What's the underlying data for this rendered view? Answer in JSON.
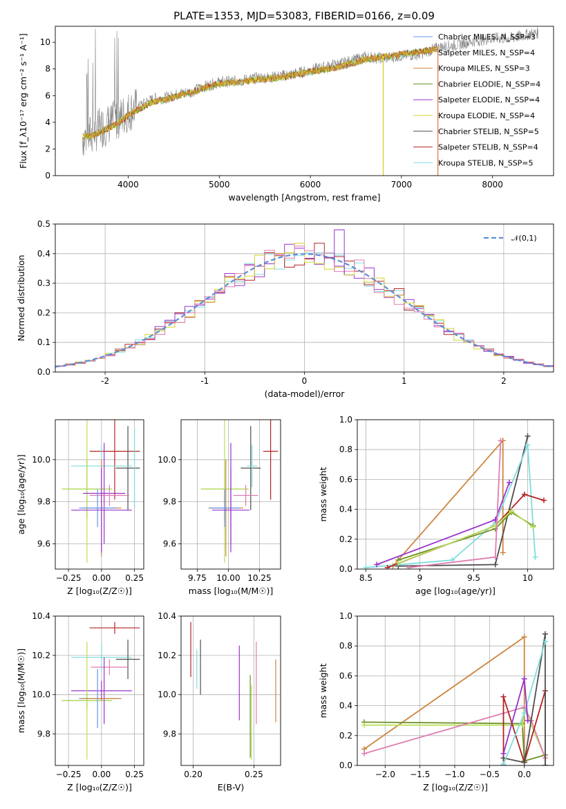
{
  "figure": {
    "title": "PLATE=1353, MJD=53083, FIBERID=0166, z=0.09"
  },
  "colors": {
    "Chabrier MILES": "#6495ed",
    "Salpeter MILES": "#cd853f",
    "Kroupa MILES": "#cd853f",
    "Chabrier ELODIE": "#6b8e23",
    "Salpeter ELODIE": "#9932cc",
    "Kroupa ELODIE": "#d2d22a",
    "Chabrier STELIB": "#4d4d4d",
    "Salpeter STELIB": "#b22222",
    "Kroupa STELIB": "#7fdcdc",
    "extra": "#e07cb0",
    "lime": "#b8e05a",
    "gray": "#808080"
  },
  "chart_data": [
    {
      "id": "spectrum",
      "type": "line",
      "title": "PLATE=1353, MJD=53083, FIBERID=0166, z=0.09",
      "xlabel": "wavelength [Angstrom, rest frame]",
      "ylabel": "Flux [f_λ10⁻¹⁷ erg cm⁻² s⁻¹ A⁻¹]",
      "xlim": [
        3200,
        8670
      ],
      "ylim": [
        0,
        11.2
      ],
      "xticks": [
        4000,
        5000,
        6000,
        7000,
        8000
      ],
      "yticks": [
        0,
        2,
        4,
        6,
        8,
        10
      ],
      "grid": false,
      "legend_position": "top-right",
      "legend": [
        "Chabrier MILES, N_SSP=3",
        "Salpeter MILES, N_SSP=4",
        "Kroupa MILES, N_SSP=3",
        "Chabrier ELODIE, N_SSP=4",
        "Salpeter ELODIE, N_SSP=4",
        "Kroupa ELODIE, N_SSP=4",
        "Chabrier STELIB, N_SSP=5",
        "Salpeter STELIB, N_SSP=4",
        "Kroupa STELIB, N_SSP=5"
      ],
      "data_series": {
        "name": "data",
        "x": [
          3500,
          3600,
          3700,
          3800,
          3900,
          4000,
          4100,
          4200,
          4300,
          4400,
          4500,
          4600,
          4700,
          4800,
          4900,
          5000,
          5200,
          5400,
          5600,
          5800,
          6000,
          6200,
          6400,
          6600,
          6800,
          7000,
          7200,
          7400,
          7600,
          7800,
          8000,
          8200,
          8400,
          8500
        ],
        "y": [
          2.8,
          3.1,
          3.6,
          3.9,
          4.3,
          4.8,
          5.1,
          5.5,
          5.8,
          5.8,
          6.0,
          6.2,
          6.3,
          6.6,
          6.8,
          7.0,
          7.1,
          7.3,
          7.4,
          7.6,
          7.9,
          8.2,
          8.5,
          8.9,
          8.8,
          9.0,
          9.1,
          9.6,
          9.8,
          10.1,
          10.3,
          10.3,
          10.6,
          10.7
        ]
      },
      "model_x": [
        3500,
        3600,
        3700,
        3800,
        3900,
        4000,
        4100,
        4200,
        4300,
        4400,
        4500,
        4600,
        4700,
        4800,
        4900,
        5000,
        5200,
        5400,
        5600,
        5800,
        6000,
        6200,
        6400,
        6600,
        6800,
        7000,
        7200,
        7400
      ],
      "model_y": [
        2.9,
        3.0,
        3.3,
        3.6,
        4.0,
        4.5,
        4.9,
        5.3,
        5.6,
        5.7,
        5.9,
        6.1,
        6.2,
        6.5,
        6.7,
        6.9,
        7.0,
        7.2,
        7.3,
        7.5,
        7.8,
        8.0,
        8.3,
        8.7,
        8.9,
        9.1,
        9.3,
        9.5
      ]
    },
    {
      "id": "residuals",
      "type": "line",
      "xlabel": "(data-model)/error",
      "ylabel": "Normed distribution",
      "xlim": [
        -2.5,
        2.5
      ],
      "ylim": [
        0,
        0.5
      ],
      "xticks": [
        -2,
        -1,
        0,
        1,
        2
      ],
      "yticks": [
        0.0,
        0.1,
        0.2,
        0.3,
        0.4,
        0.5
      ],
      "grid": true,
      "legend_position": "top-right",
      "legend": [
        "𝒩(0,1)"
      ],
      "curve": {
        "name": "𝒩(0,1)",
        "mean": 0,
        "std": 1
      },
      "bin_width": 0.1,
      "bin_start": -2.5
    },
    {
      "id": "age-vs-Z",
      "type": "scatter",
      "xlabel": "Z [log₁₀(Z/Z☉)]",
      "ylabel": "age  [log₁₀(age/yr)]",
      "xlim": [
        -0.35,
        0.32
      ],
      "ylim": [
        9.48,
        10.19
      ],
      "xticks": [
        -0.25,
        0.0,
        0.25
      ],
      "xtick_labels": [
        "−0.25",
        "0.00",
        "0.25"
      ],
      "yticks": [
        9.6,
        9.8,
        10.0
      ],
      "grid": true,
      "points": [
        {
          "x": 0.1,
          "y": 10.04,
          "xerr": 0.19,
          "yerr": 0.23,
          "color": "#b22222"
        },
        {
          "x": 0.2,
          "y": 9.96,
          "xerr": 0.09,
          "yerr": 0.2,
          "color": "#4d4d4d"
        },
        {
          "x": 0.0,
          "y": 9.97,
          "xerr": 0.23,
          "yerr": 0.1,
          "color": "#7fdcdc"
        },
        {
          "x": -0.11,
          "y": 9.86,
          "xerr": 0.19,
          "yerr": 0.14,
          "color": "#6b8e23"
        },
        {
          "x": -0.11,
          "y": 9.86,
          "xerr": 0.19,
          "yerr": 0.35,
          "color": "#b8e05a"
        },
        {
          "x": 0.02,
          "y": 9.84,
          "xerr": 0.16,
          "yerr": 0.24,
          "color": "#9932cc"
        },
        {
          "x": 0.06,
          "y": 9.83,
          "xerr": 0.15,
          "yerr": 0.05,
          "color": "#e07cb0"
        },
        {
          "x": 0.0,
          "y": 9.77,
          "xerr": 0.15,
          "yerr": 0.23,
          "color": "#cd853f"
        },
        {
          "x": -0.03,
          "y": 9.77,
          "xerr": 0.14,
          "yerr": 0.09,
          "color": "#6495ed"
        },
        {
          "x": 0.0,
          "y": 9.76,
          "xerr": 0.23,
          "yerr": 0.2,
          "color": "#9932cc"
        },
        {
          "x": 0.25,
          "y": 9.96,
          "xerr": 0.0,
          "yerr": 0.19,
          "color": "#7fdcdc"
        }
      ]
    },
    {
      "id": "age-vs-mass",
      "type": "scatter",
      "xlabel": "mass [log₁₀(M/M☉)]",
      "ylabel": "",
      "xlim": [
        9.62,
        10.42
      ],
      "ylim": [
        9.48,
        10.19
      ],
      "xticks": [
        9.75,
        10.0,
        10.25
      ],
      "xtick_labels": [
        "9.75",
        "10.00",
        "10.25"
      ],
      "yticks": [
        9.6,
        9.8,
        10.0
      ],
      "grid": true,
      "points": [
        {
          "x": 10.34,
          "y": 10.04,
          "xerr": 0.06,
          "yerr": 0.23,
          "color": "#b22222"
        },
        {
          "x": 10.18,
          "y": 9.96,
          "xerr": 0.08,
          "yerr": 0.2,
          "color": "#4d4d4d"
        },
        {
          "x": 10.19,
          "y": 9.97,
          "xerr": 0.04,
          "yerr": 0.1,
          "color": "#7fdcdc"
        },
        {
          "x": 9.97,
          "y": 9.86,
          "xerr": 0.19,
          "yerr": 0.14,
          "color": "#6b8e23"
        },
        {
          "x": 9.97,
          "y": 9.86,
          "xerr": 0.19,
          "yerr": 0.35,
          "color": "#b8e05a"
        },
        {
          "x": 10.02,
          "y": 9.84,
          "xerr": 0.0,
          "yerr": 0.24,
          "color": "#9932cc"
        },
        {
          "x": 10.14,
          "y": 9.83,
          "xerr": 0.1,
          "yerr": 0.05,
          "color": "#e07cb0"
        },
        {
          "x": 9.98,
          "y": 9.77,
          "xerr": 0.14,
          "yerr": 0.23,
          "color": "#cd853f"
        },
        {
          "x": 9.97,
          "y": 9.77,
          "xerr": 0.12,
          "yerr": 0.09,
          "color": "#6495ed"
        },
        {
          "x": 10.02,
          "y": 9.76,
          "xerr": 0.15,
          "yerr": 0.2,
          "color": "#9932cc"
        }
      ]
    },
    {
      "id": "mass-weight-vs-age",
      "type": "line",
      "xlabel": "age  [log₁₀(age/yr)]",
      "ylabel": "mass weight",
      "xlim": [
        8.42,
        10.24
      ],
      "ylim": [
        0,
        1.0
      ],
      "xticks": [
        8.5,
        9.0,
        9.5,
        10.0
      ],
      "yticks": [
        0.0,
        0.2,
        0.4,
        0.6,
        0.8,
        1.0
      ],
      "grid": true,
      "series": [
        {
          "x": [
            8.75,
            9.77,
            9.77,
            9.77
          ],
          "y": [
            0.02,
            0.86,
            0.11,
            0.86
          ],
          "color": "#cd853f"
        },
        {
          "x": [
            8.8,
            9.7,
            10.0
          ],
          "y": [
            0.02,
            0.03,
            0.89
          ],
          "color": "#4d4d4d"
        },
        {
          "x": [
            8.5,
            9.3,
            9.7,
            10.0,
            10.07
          ],
          "y": [
            0.01,
            0.06,
            0.31,
            0.83,
            0.08
          ],
          "color": "#7fdcdc"
        },
        {
          "x": [
            8.6,
            9.7,
            9.83
          ],
          "y": [
            0.03,
            0.33,
            0.58
          ],
          "color": "#9932cc"
        },
        {
          "x": [
            8.7,
            9.7,
            9.97,
            10.15
          ],
          "y": [
            0.01,
            0.29,
            0.5,
            0.46
          ],
          "color": "#b22222"
        },
        {
          "x": [
            8.8,
            9.7,
            9.85,
            10.05
          ],
          "y": [
            0.06,
            0.27,
            0.38,
            0.29
          ],
          "color": "#6b8e23"
        },
        {
          "x": [
            8.8,
            9.7,
            9.85,
            10.05
          ],
          "y": [
            0.04,
            0.29,
            0.39,
            0.28
          ],
          "color": "#b8e05a"
        },
        {
          "x": [
            8.9,
            9.7,
            9.75
          ],
          "y": [
            0.01,
            0.08,
            0.86
          ],
          "color": "#e07cb0"
        }
      ]
    },
    {
      "id": "mass-vs-Z",
      "type": "scatter",
      "xlabel": "Z [log₁₀(Z/Z☉)]",
      "ylabel": "mass [log₁₀(M/M☉)]",
      "xlim": [
        -0.35,
        0.32
      ],
      "ylim": [
        9.64,
        10.4
      ],
      "xticks": [
        -0.25,
        0.0,
        0.25
      ],
      "xtick_labels": [
        "−0.25",
        "0.00",
        "0.25"
      ],
      "yticks": [
        9.8,
        10.0,
        10.2,
        10.4
      ],
      "grid": true,
      "points": [
        {
          "x": 0.1,
          "y": 10.34,
          "xerr": 0.19,
          "yerr": 0.03,
          "color": "#b22222"
        },
        {
          "x": 0.0,
          "y": 10.19,
          "xerr": 0.23,
          "yerr": 0.07,
          "color": "#7fdcdc"
        },
        {
          "x": 0.2,
          "y": 10.18,
          "xerr": 0.09,
          "yerr": 0.1,
          "color": "#4d4d4d"
        },
        {
          "x": 0.06,
          "y": 10.14,
          "xerr": 0.14,
          "yerr": 0.04,
          "color": "#e07cb0"
        },
        {
          "x": 0.0,
          "y": 10.02,
          "xerr": 0.23,
          "yerr": 0.05,
          "color": "#9932cc"
        },
        {
          "x": -0.11,
          "y": 9.97,
          "xerr": 0.19,
          "yerr": 0.04,
          "color": "#6b8e23"
        },
        {
          "x": -0.11,
          "y": 9.97,
          "xerr": 0.19,
          "yerr": 0.3,
          "color": "#b8e05a"
        },
        {
          "x": 0.02,
          "y": 10.02,
          "xerr": 0.0,
          "yerr": 0.17,
          "color": "#9932cc"
        },
        {
          "x": -0.03,
          "y": 9.98,
          "xerr": 0.14,
          "yerr": 0.15,
          "color": "#6495ed"
        },
        {
          "x": 0.0,
          "y": 9.98,
          "xerr": 0.15,
          "yerr": 0.0,
          "color": "#cd853f"
        }
      ]
    },
    {
      "id": "mass-vs-EBV",
      "type": "scatter",
      "xlabel": "E(B-V)",
      "ylabel": "",
      "xlim": [
        0.19,
        0.272
      ],
      "ylim": [
        9.64,
        10.4
      ],
      "xticks": [
        0.2,
        0.25
      ],
      "xtick_labels": [
        "0.20",
        "0.25"
      ],
      "yticks": [
        9.8,
        10.0,
        10.2,
        10.4
      ],
      "grid": true,
      "points": [
        {
          "x": 0.198,
          "y": 10.23,
          "xerr": 0,
          "yerr": 0.14,
          "color": "#b22222"
        },
        {
          "x": 0.206,
          "y": 10.14,
          "xerr": 0,
          "yerr": 0.14,
          "color": "#4d4d4d"
        },
        {
          "x": 0.203,
          "y": 10.13,
          "xerr": 0,
          "yerr": 0.1,
          "color": "#7fdcdc"
        },
        {
          "x": 0.238,
          "y": 10.06,
          "xerr": 0,
          "yerr": 0.19,
          "color": "#9932cc"
        },
        {
          "x": 0.248,
          "y": 9.86,
          "xerr": 0,
          "yerr": 0.19,
          "color": "#b8e05a"
        },
        {
          "x": 0.252,
          "y": 10.06,
          "xerr": 0,
          "yerr": 0.21,
          "color": "#e07cb0"
        },
        {
          "x": 0.247,
          "y": 9.89,
          "xerr": 0,
          "yerr": 0.21,
          "color": "#6b8e23"
        },
        {
          "x": 0.268,
          "y": 10.02,
          "xerr": 0,
          "yerr": 0.16,
          "color": "#cd853f"
        }
      ]
    },
    {
      "id": "mass-weight-vs-Z",
      "type": "line",
      "xlabel": "Z [log₁₀(Z/Z☉)]",
      "ylabel": "mass weight",
      "xlim": [
        -2.4,
        0.42
      ],
      "ylim": [
        0,
        1.0
      ],
      "xticks": [
        -2.0,
        -1.5,
        -1.0,
        -0.5,
        0.0
      ],
      "xtick_labels": [
        "−2.0",
        "−1.5",
        "−1.0",
        "−0.5",
        "0.0"
      ],
      "yticks": [
        0.0,
        0.2,
        0.4,
        0.6,
        0.8,
        1.0
      ],
      "grid": true,
      "series": [
        {
          "x": [
            -2.3,
            0.0,
            0.0
          ],
          "y": [
            0.11,
            0.86,
            0.02
          ],
          "color": "#cd853f"
        },
        {
          "x": [
            -2.3,
            -0.03,
            0.0,
            0.3
          ],
          "y": [
            0.29,
            0.28,
            0.03,
            0.07
          ],
          "color": "#6b8e23"
        },
        {
          "x": [
            -2.3,
            -0.03,
            0.0,
            0.3
          ],
          "y": [
            0.27,
            0.27,
            0.38,
            0.05
          ],
          "color": "#b8e05a"
        },
        {
          "x": [
            -2.3,
            0.0,
            0.1,
            0.3
          ],
          "y": [
            0.08,
            0.39,
            0.3,
            0.05
          ],
          "color": "#e07cb0"
        },
        {
          "x": [
            -0.3,
            -0.3,
            0.0,
            0.3,
            0.3
          ],
          "y": [
            0.0,
            0.46,
            0.02,
            0.5,
            0.0
          ],
          "color": "#b22222"
        },
        {
          "x": [
            -0.3,
            0.0,
            0.3,
            0.3
          ],
          "y": [
            0.05,
            0.02,
            0.88,
            0.0
          ],
          "color": "#4d4d4d"
        },
        {
          "x": [
            -0.3,
            0.0,
            0.3
          ],
          "y": [
            0.01,
            0.35,
            0.83
          ],
          "color": "#7fdcdc"
        },
        {
          "x": [
            -0.3,
            0.0,
            0.05
          ],
          "y": [
            0.08,
            0.58,
            0.3
          ],
          "color": "#9932cc"
        }
      ]
    }
  ]
}
